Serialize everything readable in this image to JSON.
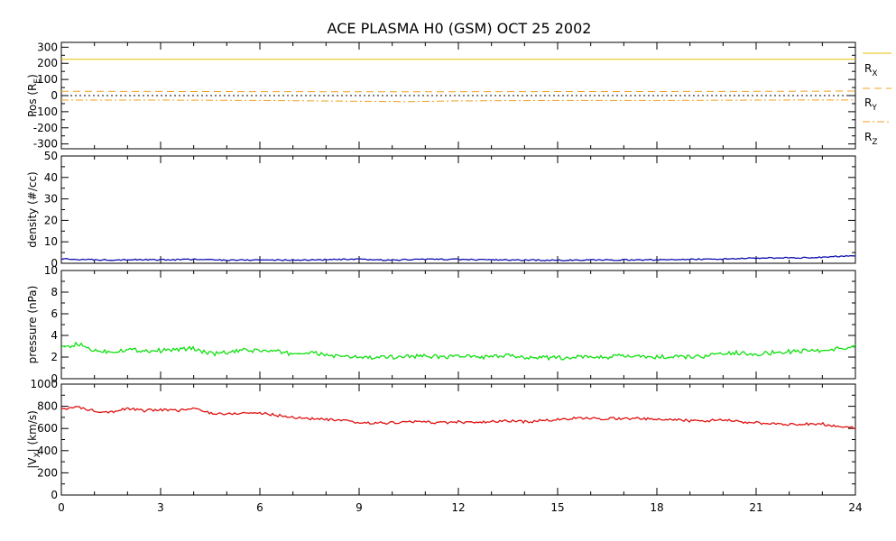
{
  "title": "ACE PLASMA H0 (GSM)   OCT 25 2002",
  "x_ticks": [
    "0",
    "3",
    "6",
    "9",
    "12",
    "15",
    "18",
    "21",
    "24"
  ],
  "chart_data": [
    {
      "type": "line",
      "name": "position",
      "ylabel": "Pos (R",
      "ylabel_sub": "E",
      "ylabel_end": ")",
      "xlim": [
        0,
        24
      ],
      "ylim": [
        -330,
        330
      ],
      "yticks": [
        -300,
        -200,
        -100,
        0,
        100,
        200,
        300
      ],
      "series": [
        {
          "name": "R",
          "sub": "X",
          "color": "#e8c000",
          "dash": "solid",
          "x": [
            0,
            24
          ],
          "y": [
            225,
            225
          ]
        },
        {
          "name": "R",
          "sub": "Y",
          "color": "#f0a020",
          "dash": "dash",
          "x": [
            0,
            4,
            8,
            12,
            16,
            20,
            24
          ],
          "y": [
            27,
            25,
            24,
            24,
            25,
            26,
            28
          ]
        },
        {
          "name": "R",
          "sub": "Z",
          "color": "#f0a020",
          "dash": "dashdot",
          "x": [
            0,
            3,
            6,
            9,
            10.5,
            12,
            15,
            18,
            21,
            24
          ],
          "y": [
            -28,
            -28,
            -30,
            -35,
            -38,
            -33,
            -30,
            -30,
            -28,
            -27
          ]
        }
      ],
      "reference_line": {
        "y": 0,
        "color": "#000000",
        "dash": "dot"
      }
    },
    {
      "type": "line",
      "name": "density",
      "ylabel": "density (#/cc)",
      "xlim": [
        0,
        24
      ],
      "ylim": [
        0,
        50
      ],
      "yticks": [
        0,
        10,
        20,
        30,
        40,
        50
      ],
      "series": [
        {
          "color": "#1010b0",
          "x": [
            0,
            1,
            2,
            3,
            4,
            5,
            6,
            7,
            8,
            9,
            10,
            11,
            12,
            13,
            14,
            15,
            16,
            17,
            18,
            19,
            20,
            21,
            22,
            23,
            23.5,
            24
          ],
          "y": [
            2.0,
            1.6,
            1.7,
            1.6,
            1.8,
            1.5,
            1.6,
            1.5,
            1.7,
            1.8,
            1.5,
            1.9,
            1.8,
            1.6,
            1.5,
            1.4,
            1.5,
            1.6,
            1.6,
            1.8,
            2.0,
            2.4,
            2.5,
            2.8,
            3.3,
            3.6
          ]
        }
      ]
    },
    {
      "type": "line",
      "name": "pressure",
      "ylabel": "pressure (nPa)",
      "xlim": [
        0,
        24
      ],
      "ylim": [
        0,
        10
      ],
      "yticks": [
        0,
        2,
        4,
        6,
        8,
        10
      ],
      "series": [
        {
          "color": "#10e010",
          "x": [
            0,
            0.5,
            1,
            1.5,
            2,
            2.5,
            3,
            3.5,
            4,
            4.5,
            5,
            5.5,
            6,
            6.5,
            7,
            7.5,
            8,
            8.5,
            9,
            9.5,
            10,
            10.5,
            11,
            11.5,
            12,
            12.5,
            13,
            13.5,
            14,
            14.5,
            15,
            15.5,
            16,
            16.5,
            17,
            17.5,
            18,
            18.5,
            19,
            19.5,
            20,
            20.5,
            21,
            21.5,
            22,
            22.5,
            23,
            23.5,
            24
          ],
          "y": [
            2.8,
            3.2,
            2.6,
            2.5,
            2.7,
            2.6,
            2.6,
            2.7,
            2.8,
            2.3,
            2.4,
            2.6,
            2.6,
            2.5,
            2.3,
            2.4,
            2.2,
            2.0,
            2.0,
            1.9,
            2.0,
            2.1,
            2.1,
            2.0,
            2.1,
            2.0,
            2.0,
            2.1,
            2.0,
            2.0,
            1.9,
            2.0,
            2.0,
            2.0,
            2.1,
            2.0,
            2.0,
            2.0,
            2.0,
            2.1,
            2.3,
            2.4,
            2.3,
            2.4,
            2.5,
            2.6,
            2.6,
            2.8,
            3.0
          ]
        }
      ]
    },
    {
      "type": "line",
      "name": "velocity",
      "ylabel": "|V",
      "ylabel_sub": "X",
      "ylabel_end": "| (km/s)",
      "xlim": [
        0,
        24
      ],
      "ylim": [
        0,
        1000
      ],
      "yticks": [
        0,
        200,
        400,
        600,
        800,
        1000
      ],
      "series": [
        {
          "color": "#e01010",
          "x": [
            0,
            0.5,
            1,
            1.5,
            2,
            2.5,
            3,
            3.5,
            4,
            4.5,
            5,
            5.5,
            6,
            6.5,
            7,
            7.5,
            8,
            8.5,
            9,
            9.5,
            10,
            10.5,
            11,
            11.5,
            12,
            12.5,
            13,
            13.5,
            14,
            14.5,
            15,
            15.5,
            16,
            16.5,
            17,
            17.5,
            18,
            18.5,
            19,
            19.5,
            20,
            20.5,
            21,
            21.5,
            22,
            22.5,
            23,
            23.5,
            24
          ],
          "y": [
            780,
            790,
            760,
            750,
            780,
            760,
            770,
            760,
            780,
            740,
            730,
            740,
            740,
            720,
            700,
            690,
            680,
            670,
            650,
            650,
            650,
            660,
            660,
            650,
            660,
            650,
            660,
            670,
            660,
            670,
            680,
            690,
            690,
            690,
            690,
            690,
            680,
            680,
            670,
            670,
            680,
            660,
            650,
            640,
            640,
            640,
            640,
            620,
            610
          ]
        }
      ]
    }
  ]
}
